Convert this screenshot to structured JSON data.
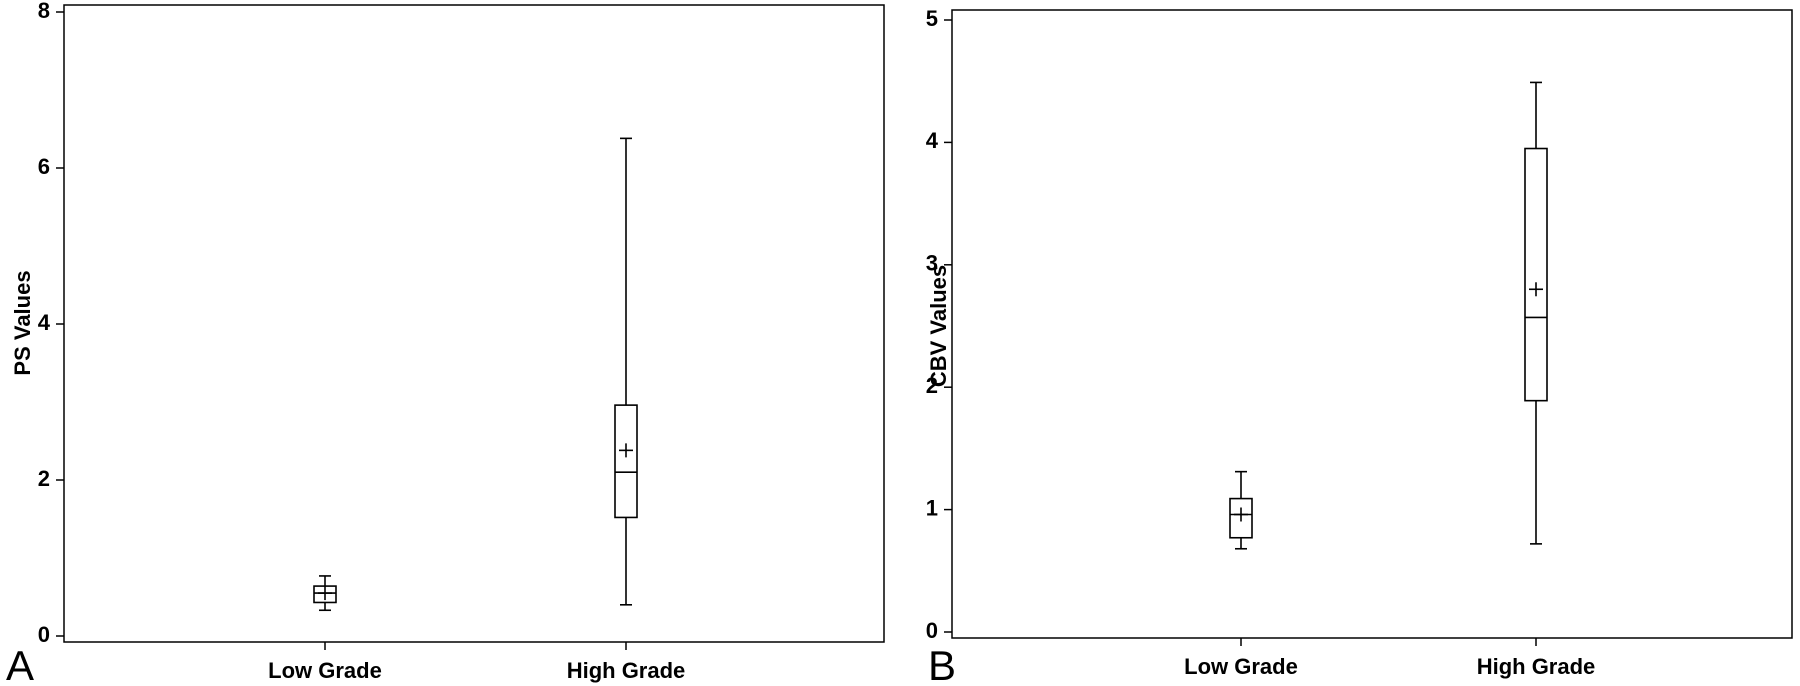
{
  "chart_data": [
    {
      "panel": "A",
      "type": "box",
      "categories": [
        "Low Grade",
        "High Grade"
      ],
      "ylabel": "PS Values",
      "ylim": [
        0,
        8
      ],
      "yticks": [
        "0",
        "2",
        "4",
        "6",
        "8"
      ],
      "boxes": [
        {
          "category": "Low Grade",
          "min": 0.33,
          "q1": 0.43,
          "median": 0.55,
          "q3": 0.64,
          "max": 0.77,
          "mean": 0.55
        },
        {
          "category": "High Grade",
          "min": 0.4,
          "q1": 1.52,
          "median": 2.1,
          "q3": 2.96,
          "max": 6.38,
          "mean": 2.38
        }
      ]
    },
    {
      "panel": "B",
      "type": "box",
      "categories": [
        "Low Grade",
        "High Grade"
      ],
      "ylabel": "CBV Values",
      "ylim": [
        0,
        5
      ],
      "yticks": [
        "0",
        "1",
        "2",
        "3",
        "4",
        "5"
      ],
      "boxes": [
        {
          "category": "Low Grade",
          "min": 0.68,
          "q1": 0.77,
          "median": 0.96,
          "q3": 1.09,
          "max": 1.31,
          "mean": 0.96
        },
        {
          "category": "High Grade",
          "min": 0.72,
          "q1": 1.89,
          "median": 2.57,
          "q3": 3.95,
          "max": 4.49,
          "mean": 2.8
        }
      ]
    }
  ]
}
